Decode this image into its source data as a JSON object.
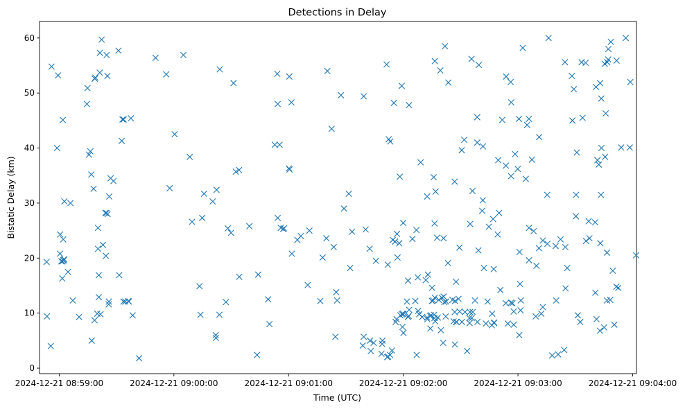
{
  "chart_data": {
    "type": "scatter",
    "title": "Detections in Delay",
    "xlabel": "Time (UTC)",
    "ylabel": "Bistatic Delay (km)",
    "marker": "x",
    "color": "#1f77b4",
    "grid": false,
    "x_unit": "seconds after 2024-12-21 08:59:00",
    "xlim": [
      -10.3,
      302
    ],
    "ylim": [
      -1,
      63
    ],
    "x_ticks": [
      {
        "value": 0,
        "label": "2024-12-21 08:59:00"
      },
      {
        "value": 60,
        "label": "2024-12-21 09:00:00"
      },
      {
        "value": 120,
        "label": "2024-12-21 09:01:00"
      },
      {
        "value": 180,
        "label": "2024-12-21 09:02:00"
      },
      {
        "value": 240,
        "label": "2024-12-21 09:03:00"
      },
      {
        "value": 300,
        "label": "2024-12-21 09:04:00"
      }
    ],
    "y_ticks": [
      {
        "value": 0,
        "label": "0"
      },
      {
        "value": 10,
        "label": "10"
      },
      {
        "value": 20,
        "label": "20"
      },
      {
        "value": 30,
        "label": "30"
      },
      {
        "value": 40,
        "label": "40"
      },
      {
        "value": 50,
        "label": "50"
      },
      {
        "value": 60,
        "label": "60"
      }
    ],
    "series": [
      {
        "name": "detections",
        "x": [
          -6.6,
          -6.4,
          -4.4,
          -4.0,
          -0.6,
          0.4,
          1.1,
          1.7,
          2.1,
          2.4,
          2.6,
          1.6,
          1.9,
          4.6,
          14.8,
          14.5,
          18.9,
          -1.1,
          15.6,
          16.3,
          10.4,
          22.2,
          16.8,
          21.3,
          24.8,
          21.2,
          25.2,
          18.0,
          33.1,
          26.2,
          20.3,
          33.7,
          37.5,
          25.3,
          22.9,
          20.3,
          18.5,
          24.4,
          7.1,
          2.1,
          2.7,
          0.5,
          5.9,
          18.6,
          24.2,
          24.7,
          19.9,
          21.6,
          31.0,
          20.7,
          17.0,
          20.7,
          25.9,
          26.9,
          28.4,
          32.7,
          31.4,
          34.5,
          26.0,
          33.6,
          36.4,
          36.2,
          38.4,
          41.8,
          50.4,
          60.4,
          68.3,
          57.8,
          56.0,
          65.0,
          73.9,
          69.5,
          73.4,
          74.8,
          75.8,
          80.3,
          82.3,
          89.9,
          84.0,
          87.2,
          81.9,
          83.8,
          82.0,
          88.2,
          91.2,
          92.4,
          94.1,
          94.2,
          99.5,
          103.5,
          104.1,
          109.3,
          112.8,
          110.0,
          114.1,
          114.3,
          115.9,
          117.2,
          117.6,
          120.5,
          121.5,
          124.6,
          126.4,
          136.6,
          130.9,
          139.8,
          140.3,
          143.6,
          144.5,
          145.4,
          142.5,
          149.0,
          151.5,
          147.4,
          153.2,
          160.3,
          159.3,
          176.7,
          180.0,
          181.9,
          183.0,
          182.5,
          189.1,
          188.3,
          191.8,
          194.2,
          195.1,
          196.4,
          197.7,
          201.1,
          200.9,
          207.0,
          206.9,
          201.8,
          216.2,
          218.7,
          215.0,
          209.4,
          214.6,
          221.6,
          221.3,
          224.8,
          229.7,
          230.8,
          230.1,
          233.7,
          236.4,
          241.1,
          242.5,
          248.2,
          251.0,
          253.0,
          257.9,
          260.0,
          265.8,
          271.3,
          273.8,
          275.4,
          280.8,
          283.7,
          285.6,
          285.9,
          286.7,
          291.6,
          294.0,
          296.4,
          298.5,
          298.8,
          301.8,
          171.3,
          172.4,
          173.2,
          174.5,
          175.1,
          175.7,
          179.2,
          178.2,
          187.8,
          192.6,
          196.5,
          199.4,
          203.6,
          195.9,
          210.7,
          218.7,
          221.7,
          223.2,
          227.0,
          231.8,
          233.8,
          238.5,
          245.7,
          244.1,
          249.3,
          256.0,
          268.5,
          270.8,
          272.6,
          277.0,
          287.2,
          285.4,
          283.6,
          283.4,
          282.3,
          281.6,
          283.0,
          273.3,
          270.4,
          269.2,
          259.7,
          252.2,
          245.8,
          241.5,
          237.8,
          234.7,
          227.5,
          227.5,
          218.8,
          213.4,
          208.9,
          200.2,
          203.4,
          207.6,
          201.1,
          199.7,
          196.5,
          192.9,
          187.6,
          186.9,
          183.1,
          178.5,
          176.5,
          176.0,
          171.6,
          169.1,
          168.6,
          172.0,
          163.0,
          162.6,
          159.3,
          158.8,
          164.5,
          169.0,
          174.1,
          173.1,
          187.0,
          192.5,
          195.0,
          198.6,
          201.5,
          202.4,
          207.1,
          205.7,
          202.2,
          198.1,
          196.3,
          189.9,
          182.5,
          182.8,
          180.1,
          179.8,
          179.3,
          194.5,
          196.1,
          194.1,
          206.9,
          209.5,
          212.3,
          214.9,
          216.3,
          219.3,
          222.2,
          227.3,
          229.4,
          240.8,
          245.8,
          249.7,
          255.4,
          262.3,
          264.8,
          270.3,
          275.6,
          277.4,
          280.4,
          283.1,
          286.6,
          289.6,
          292.5,
          291.5,
          288.3,
          286.6,
          186.3,
          195.6,
          196.7,
          206.3,
          207.9,
          207.7,
          214.7,
          215.8,
          217.5,
          224.1,
          233.6,
          237.8,
          239.9,
          247.3,
          251.1,
          268.2,
          287.3,
          288.6,
          264.6,
          244.8,
          236.5,
          240.5,
          236.2,
          219.5,
          215.7,
          211.9,
          210.6,
          196.9,
          192.5,
          184.8,
          177.9,
          177.0,
          180.1,
          179.6,
          264.9,
          280.5,
          236.4,
          237.1,
          253.0,
          264.2,
          261.0,
          226.3,
          241.4,
          226.5,
          281.1,
          285.1,
          282.9,
          290.4,
          240.7,
          255.3,
          120.4,
          120.2,
          115.3,
          114.3,
          121.7,
          137.8,
          130.0,
          152.2,
          144.9,
          165.7,
          162.4,
          171.9
        ],
        "y": [
          19.3,
          9.4,
          4.0,
          54.8,
          53.2,
          20.8,
          19.4,
          19.4,
          19.6,
          19.6,
          19.8,
          16.3,
          45.1,
          17.5,
          50.9,
          48.0,
          52.8,
          40.0,
          38.8,
          39.4,
          9.3,
          59.7,
          35.2,
          57.3,
          56.9,
          53.7,
          53.1,
          32.6,
          45.2,
          31.2,
          25.5,
          45.2,
          45.4,
          28.0,
          22.4,
          21.7,
          8.7,
          20.4,
          12.3,
          23.4,
          30.3,
          24.3,
          30.0,
          52.6,
          28.2,
          28.2,
          9.9,
          9.8,
          57.7,
          16.9,
          5.0,
          12.9,
          11.6,
          34.5,
          34.0,
          41.3,
          16.9,
          12.1,
          12.1,
          12.1,
          12.1,
          12.2,
          9.6,
          1.8,
          56.4,
          42.5,
          38.4,
          32.7,
          53.4,
          56.9,
          9.7,
          26.6,
          14.9,
          27.3,
          31.7,
          30.3,
          32.4,
          24.6,
          54.3,
          12.0,
          6.0,
          9.7,
          5.5,
          25.4,
          51.8,
          35.7,
          36.0,
          16.6,
          25.8,
          2.4,
          17.0,
          12.5,
          40.6,
          8.0,
          53.5,
          48.0,
          25.5,
          25.3,
          25.4,
          36.1,
          48.3,
          23.3,
          24.0,
          12.2,
          25.0,
          23.6,
          54.0,
          22.0,
          5.7,
          12.3,
          43.5,
          29.0,
          31.7,
          49.6,
          24.8,
          25.2,
          49.4,
          24.4,
          26.4,
          12.1,
          47.8,
          15.9,
          37.4,
          9.8,
          16.0,
          7.2,
          14.6,
          26.3,
          23.7,
          23.6,
          4.6,
          4.3,
          33.9,
          58.5,
          32.2,
          45.6,
          26.2,
          21.9,
          9.1,
          30.5,
          28.6,
          25.7,
          37.8,
          14.2,
          28.2,
          36.8,
          34.9,
          15.3,
          58.2,
          24.9,
          21.8,
          23.2,
          2.3,
          12.3,
          18.2,
          9.6,
          45.5,
          55.5,
          51.1,
          40.0,
          38.4,
          46.3,
          55.6,
          55.9,
          40.1,
          60.0,
          40.1,
          52.0,
          20.5,
          55.2,
          41.6,
          41.2,
          23.3,
          48.2,
          23.0,
          51.3,
          34.8,
          10.4,
          8.9,
          55.8,
          54.1,
          51.9,
          34.7,
          8.4,
          41.0,
          40.3,
          8.1,
          27.1,
          45.1,
          53.0,
          38.9,
          45.3,
          34.4,
          9.4,
          60.0,
          45.0,
          39.2,
          8.4,
          26.7,
          56.1,
          55.3,
          49.0,
          31.5,
          37.0,
          37.8,
          51.8,
          55.6,
          31.5,
          50.7,
          22.2,
          9.9,
          25.5,
          12.3,
          7.9,
          8.1,
          8.3,
          8.2,
          8.4,
          3.1,
          12.6,
          12.8,
          19.1,
          15.7,
          13.0,
          6.9,
          12.8,
          17.0,
          16.5,
          25.1,
          10.6,
          9.6,
          8.9,
          8.4,
          2.0,
          5.0,
          2.6,
          2.1,
          3.1,
          5.0,
          5.7,
          4.1,
          4.6,
          4.4,
          3.2,
          2.4,
          2.4,
          9.2,
          12.2,
          12.4,
          12.0,
          12.1,
          12.2,
          12.4,
          9.4,
          9.2,
          9.1,
          9.3,
          9.3,
          9.5,
          9.8,
          9.9,
          9.8,
          9.6,
          9.7,
          9.5,
          10.2,
          10.3,
          10.2,
          10.2,
          10.2,
          21.4,
          18.2,
          18.0,
          24.3,
          21.1,
          19.6,
          18.6,
          22.6,
          23.4,
          22.0,
          27.6,
          23.1,
          23.6,
          26.5,
          22.7,
          21.0,
          17.7,
          14.6,
          14.8,
          12.4,
          12.3,
          12.2,
          12.3,
          8.5,
          8.5,
          8.4,
          8.4,
          8.2,
          9.1,
          12.3,
          12.1,
          11.8,
          10.3,
          36.2,
          37.9,
          42.0,
          53.1,
          58.0,
          59.3,
          55.6,
          44.2,
          48.3,
          45.3,
          52.0,
          55.1,
          56.2,
          41.5,
          39.6,
          32.1,
          31.2,
          23.5,
          22.7,
          20.1,
          6.4,
          7.5,
          14.5,
          13.7,
          11.9,
          11.8,
          11.1,
          3.3,
          2.5,
          7.8,
          10.5,
          9.9,
          8.9,
          7.4,
          6.8,
          7.9,
          6.0,
          31.5,
          53.0,
          36.3,
          40.6,
          27.3,
          20.8,
          20.1,
          15.1,
          18.2,
          13.8,
          19.5,
          21.7,
          18.8
        ]
      }
    ]
  }
}
